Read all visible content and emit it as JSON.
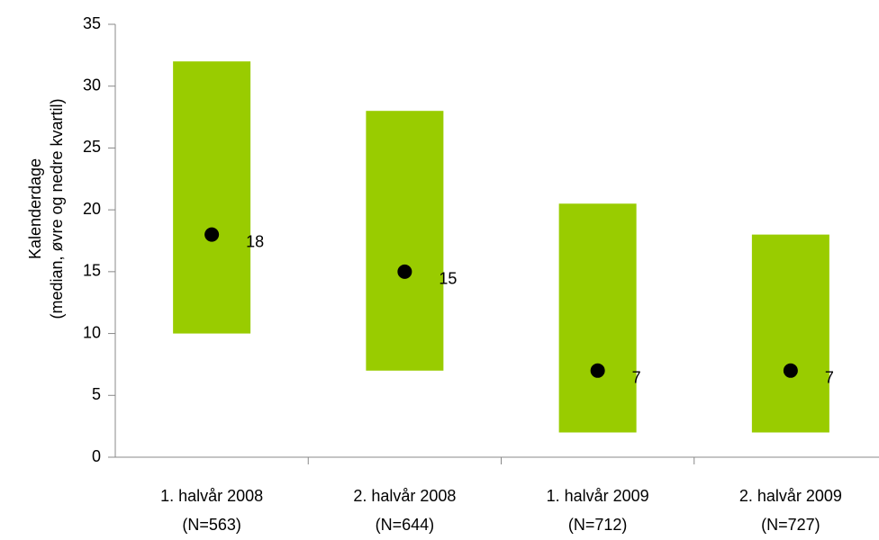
{
  "chart_data": {
    "type": "range",
    "ylabel": [
      "Kalenderdage",
      "(median, øvre og nedre kvartil)"
    ],
    "categories": [
      [
        "1. halvår 2008",
        "(N=563)"
      ],
      [
        "2. halvår 2008",
        "(N=644)"
      ],
      [
        "1. halvår 2009",
        "(N=712)"
      ],
      [
        "2. halvår 2009",
        "(N=727)"
      ]
    ],
    "lower": [
      10,
      7,
      2,
      2
    ],
    "upper": [
      32,
      28,
      20.5,
      18
    ],
    "median": [
      18,
      15,
      7,
      7
    ],
    "color": "#99cc00",
    "marker_color": "#000000",
    "ylim": [
      0,
      35
    ],
    "yticks": [
      0,
      5,
      10,
      15,
      20,
      25,
      30,
      35
    ],
    "grid": false
  }
}
